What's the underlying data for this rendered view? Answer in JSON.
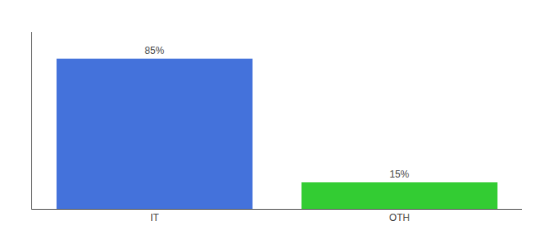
{
  "chart_data": {
    "type": "bar",
    "categories": [
      "IT",
      "OTH"
    ],
    "values": [
      85,
      15
    ],
    "value_labels": [
      "85%",
      "15%"
    ],
    "data_labels": true,
    "colors": [
      "#4472db",
      "#33cc33"
    ],
    "ylim": [
      0,
      100
    ],
    "yticks": [],
    "tick_labels": "x",
    "grid": false
  }
}
